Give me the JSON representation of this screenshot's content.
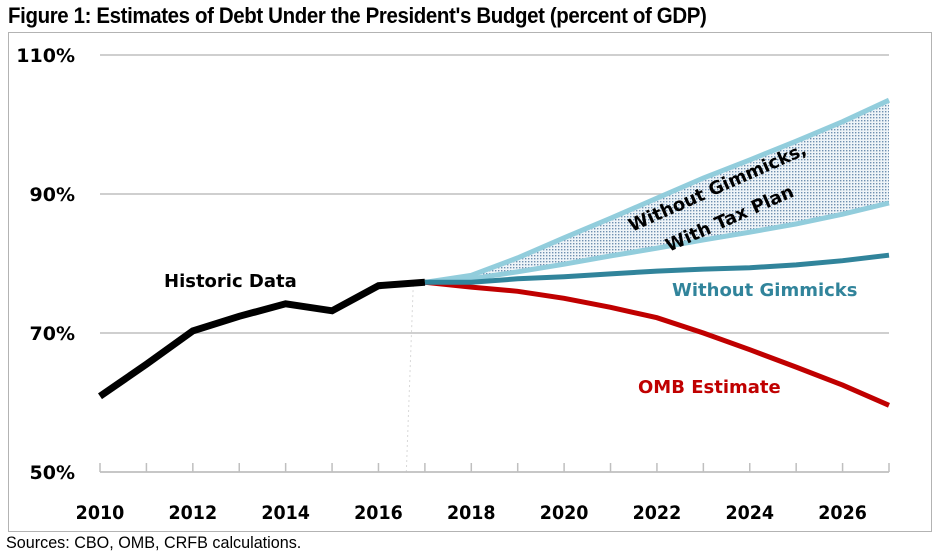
{
  "title": "Figure 1: Estimates of Debt Under the President's Budget (percent of GDP)",
  "source": "Sources: CBO, OMB, CRFB calculations.",
  "chart_data": {
    "type": "line",
    "title": "Figure 1: Estimates of Debt Under the President's Budget (percent of GDP)",
    "xlabel": "",
    "ylabel": "percent of GDP",
    "xlim": [
      2010,
      2027
    ],
    "ylim": [
      50,
      110
    ],
    "x_ticks": [
      2010,
      2012,
      2014,
      2016,
      2018,
      2020,
      2022,
      2024,
      2026
    ],
    "x_tick_labels": [
      "2010",
      "2012",
      "2014",
      "2016",
      "2018",
      "2020",
      "2022",
      "2024",
      "2026"
    ],
    "y_ticks": [
      50,
      70,
      90,
      110
    ],
    "y_tick_labels": [
      "50%",
      "70%",
      "90%",
      "110%"
    ],
    "grid": "horizontal",
    "legend": "none (inline annotations)",
    "series": [
      {
        "name": "Historic Data",
        "color": "#000000",
        "x": [
          2010,
          2011,
          2012,
          2013,
          2014,
          2015,
          2016,
          2017
        ],
        "values": [
          60.9,
          65.5,
          70.3,
          72.4,
          74.2,
          73.2,
          76.8,
          77.3
        ]
      },
      {
        "name": "OMB Estimate",
        "color": "#c00000",
        "x": [
          2017,
          2018,
          2019,
          2020,
          2021,
          2022,
          2023,
          2024,
          2025,
          2026,
          2027
        ],
        "values": [
          77.3,
          76.6,
          76.0,
          75.0,
          73.7,
          72.2,
          70.0,
          67.6,
          65.1,
          62.5,
          59.6
        ]
      },
      {
        "name": "Without Gimmicks",
        "color": "#31849b",
        "x": [
          2017,
          2018,
          2019,
          2020,
          2021,
          2022,
          2023,
          2024,
          2025,
          2026,
          2027
        ],
        "values": [
          77.3,
          77.3,
          77.8,
          78.1,
          78.5,
          78.9,
          79.2,
          79.4,
          79.8,
          80.4,
          81.2
        ]
      },
      {
        "name": "Without Gimmicks, With Tax Plan (high)",
        "color": "#92cddc",
        "x": [
          2017,
          2018,
          2019,
          2020,
          2021,
          2022,
          2023,
          2024,
          2025,
          2026,
          2027
        ],
        "values": [
          77.3,
          78.3,
          80.8,
          83.7,
          86.5,
          89.4,
          92.3,
          94.9,
          97.6,
          100.4,
          103.5
        ]
      },
      {
        "name": "Without Gimmicks, With Tax Plan (low)",
        "color": "#92cddc",
        "x": [
          2017,
          2018,
          2019,
          2020,
          2021,
          2022,
          2023,
          2024,
          2025,
          2026,
          2027
        ],
        "values": [
          77.3,
          77.8,
          78.8,
          79.9,
          81.1,
          82.2,
          83.4,
          84.5,
          85.7,
          87.1,
          88.7
        ]
      }
    ],
    "band": {
      "name": "Without Gimmicks, With Tax Plan",
      "between": [
        "Without Gimmicks, With Tax Plan (low)",
        "Without Gimmicks, With Tax Plan (high)"
      ],
      "fill": "dotted"
    },
    "annotations": [
      {
        "text": "Historic Data",
        "color": "#000000"
      },
      {
        "text": "Without Gimmicks,",
        "color": "#000000"
      },
      {
        "text": "With Tax Plan",
        "color": "#000000"
      },
      {
        "text": "Without Gimmicks",
        "color": "#31849b"
      },
      {
        "text": "OMB Estimate",
        "color": "#c00000"
      }
    ]
  }
}
